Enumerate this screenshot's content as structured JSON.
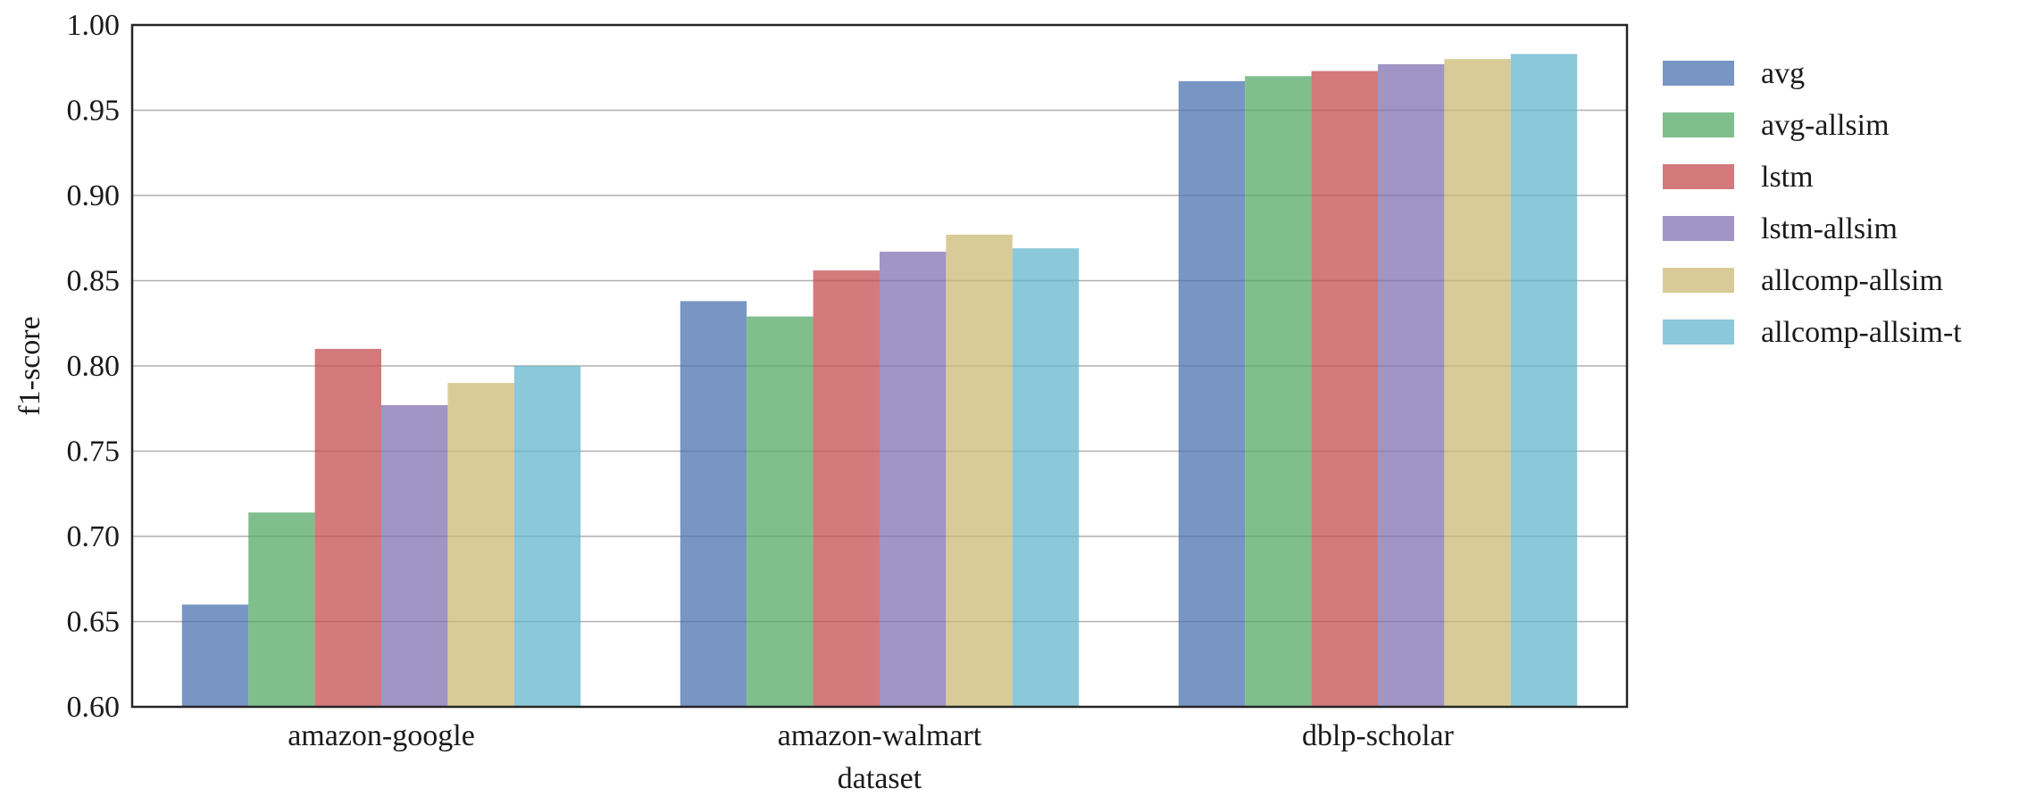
{
  "chart_data": {
    "type": "bar",
    "xlabel": "dataset",
    "ylabel": "f1-score",
    "ylim": [
      0.6,
      1.0
    ],
    "yticks": [
      "0.60",
      "0.65",
      "0.70",
      "0.75",
      "0.80",
      "0.85",
      "0.90",
      "0.95",
      "1.00"
    ],
    "grid": "horizontal",
    "legend_position": "outside-right",
    "categories": [
      "amazon-google",
      "amazon-walmart",
      "dblp-scholar"
    ],
    "series": [
      {
        "name": "avg",
        "color": "#4c72b0",
        "values": [
          0.66,
          0.838,
          0.967
        ]
      },
      {
        "name": "avg-allsim",
        "color": "#55a868",
        "values": [
          0.714,
          0.829,
          0.97
        ]
      },
      {
        "name": "lstm",
        "color": "#c44e52",
        "values": [
          0.81,
          0.856,
          0.973
        ]
      },
      {
        "name": "lstm-allsim",
        "color": "#8172b2",
        "values": [
          0.777,
          0.867,
          0.977
        ]
      },
      {
        "name": "allcomp-allsim",
        "color": "#ccb974",
        "values": [
          0.79,
          0.877,
          0.98
        ]
      },
      {
        "name": "allcomp-allsim-t",
        "color": "#64b5cd",
        "values": [
          0.8,
          0.869,
          0.983
        ]
      }
    ]
  }
}
